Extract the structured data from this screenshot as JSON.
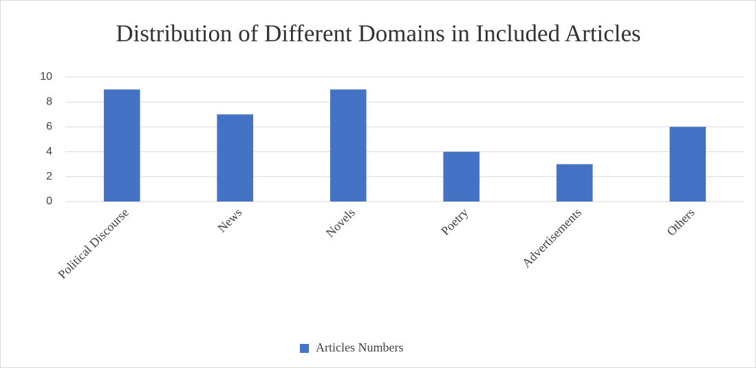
{
  "chart_data": {
    "type": "bar",
    "title": "Distribution of Different Domains in Included Articles",
    "categories": [
      "Political Discourse",
      "News",
      "Novels",
      "Poetry",
      "Advertisements",
      "Others"
    ],
    "series": [
      {
        "name": "Articles Numbers",
        "color": "#4472c4",
        "values": [
          9,
          7,
          9,
          4,
          3,
          6
        ]
      }
    ],
    "ylim": [
      0,
      10
    ],
    "yticks": [
      0,
      2,
      4,
      6,
      8,
      10
    ],
    "grid": true,
    "legend": "bottom"
  }
}
